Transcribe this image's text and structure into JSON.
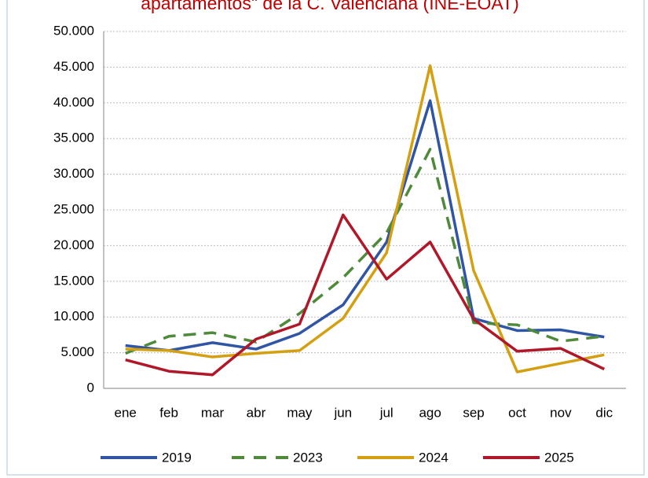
{
  "chart_data": {
    "type": "line",
    "title": "apartamentos\" de la C. Valenciana (INE-EOAT)",
    "categories": [
      "ene",
      "feb",
      "mar",
      "abr",
      "may",
      "jun",
      "jul",
      "ago",
      "sep",
      "oct",
      "nov",
      "dic"
    ],
    "series": [
      {
        "name": "2019",
        "color": "#2f55a4",
        "dash": false,
        "values": [
          6000,
          5300,
          6400,
          5500,
          7700,
          11700,
          20500,
          40300,
          9800,
          8100,
          8200,
          7200
        ]
      },
      {
        "name": "2023",
        "color": "#4e8a3a",
        "dash": true,
        "values": [
          4900,
          7300,
          7800,
          6500,
          10500,
          15500,
          21800,
          33500,
          9200,
          8900,
          6600,
          7300
        ]
      },
      {
        "name": "2024",
        "color": "#d4a012",
        "dash": false,
        "values": [
          5500,
          5300,
          4400,
          4900,
          5300,
          9800,
          19000,
          45200,
          16500,
          2300,
          3500,
          4700
        ]
      },
      {
        "name": "2025",
        "color": "#b0182a",
        "dash": false,
        "values": [
          4000,
          2400,
          1900,
          6900,
          9000,
          24300,
          15300,
          20500,
          9700,
          5200,
          5600,
          2700
        ]
      }
    ],
    "ylim": [
      0,
      50000
    ],
    "yticks": [
      0,
      {
        "value": 5000,
        "label": "5.000"
      },
      {
        "value": 10000,
        "label": "10.000"
      },
      {
        "value": 15000,
        "label": "15.000"
      },
      {
        "value": 20000,
        "label": "20.000"
      },
      {
        "value": 25000,
        "label": "25.000"
      },
      {
        "value": 30000,
        "label": "30.000"
      },
      {
        "value": 35000,
        "label": "35.000"
      },
      {
        "value": 40000,
        "label": "40.000"
      },
      {
        "value": 45000,
        "label": "45.000"
      },
      {
        "value": 50000,
        "label": "50.000"
      }
    ],
    "grid": true,
    "legend": "bottom"
  }
}
